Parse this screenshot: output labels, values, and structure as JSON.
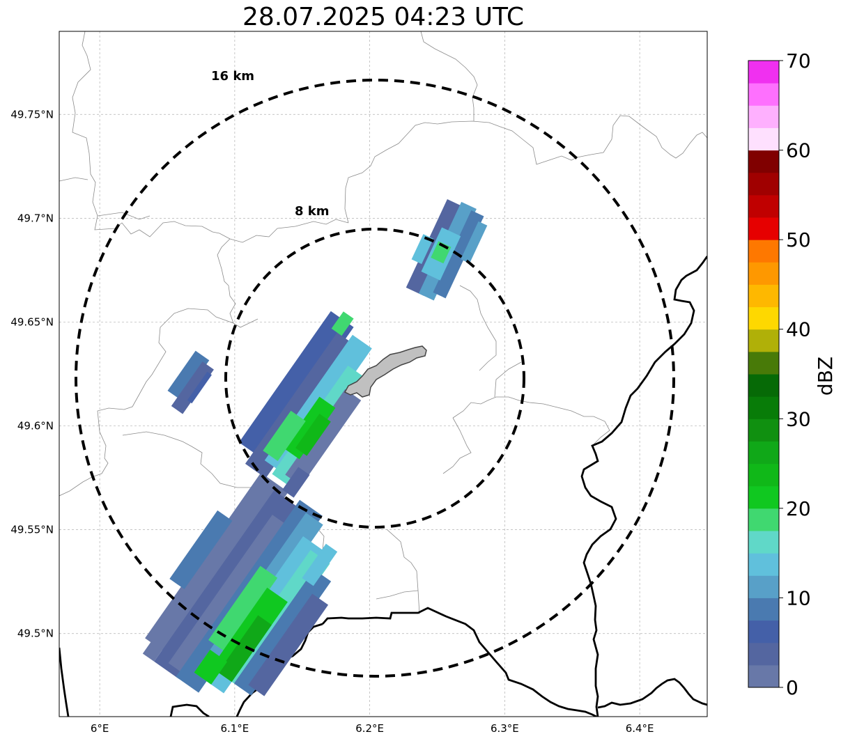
{
  "title": "28.07.2025 04:23 UTC",
  "map": {
    "lon_range": [
      5.97,
      6.45
    ],
    "lat_range": [
      49.46,
      49.79
    ],
    "lon_ticks": [
      {
        "value": 6.0,
        "label": "6°E"
      },
      {
        "value": 6.1,
        "label": "6.1°E"
      },
      {
        "value": 6.2,
        "label": "6.2°E"
      },
      {
        "value": 6.3,
        "label": "6.3°E"
      },
      {
        "value": 6.4,
        "label": "6.4°E"
      }
    ],
    "lat_ticks": [
      {
        "value": 49.5,
        "label": "49.5°N"
      },
      {
        "value": 49.55,
        "label": "49.55°N"
      },
      {
        "value": 49.6,
        "label": "49.6°N"
      },
      {
        "value": 49.65,
        "label": "49.65°N"
      },
      {
        "value": 49.7,
        "label": "49.7°N"
      },
      {
        "value": 49.75,
        "label": "49.75°N"
      }
    ],
    "grid": true,
    "range_rings": [
      {
        "label": "8 km"
      },
      {
        "label": "16 km"
      }
    ],
    "city_outline_color": "#c0c0c0"
  },
  "colorbar": {
    "label": "dBZ",
    "ticks": [
      "0",
      "10",
      "20",
      "30",
      "40",
      "50",
      "60",
      "70"
    ],
    "range": [
      0,
      70
    ],
    "colors": [
      "#6878a8",
      "#5466a0",
      "#4460a8",
      "#4a7ab0",
      "#58a0c8",
      "#60c0dc",
      "#60d8c8",
      "#40d870",
      "#10c820",
      "#10b818",
      "#10a818",
      "#109010",
      "#087c08",
      "#066a06",
      "#487a08",
      "#b0b008",
      "#fed800",
      "#feb800",
      "#fe9800",
      "#fe7800",
      "#e60000",
      "#c00000",
      "#a00000",
      "#800000",
      "#fee0fe",
      "#feb0fe",
      "#fe70fe",
      "#f030f0"
    ]
  }
}
